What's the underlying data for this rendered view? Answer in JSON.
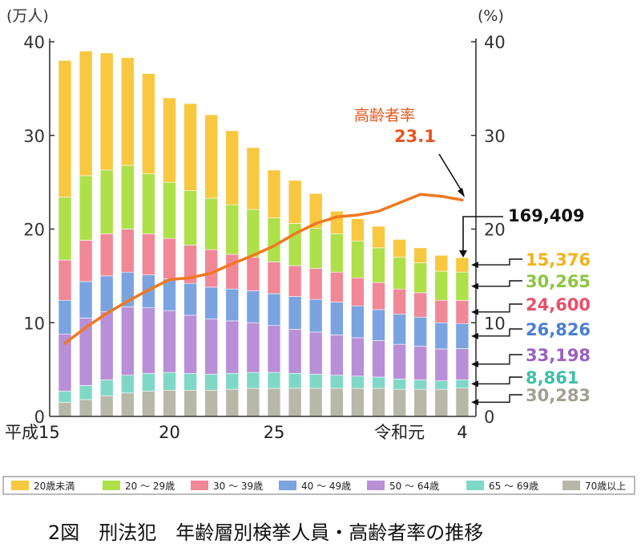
{
  "chart_data": {
    "type": "bar",
    "stacked": true,
    "title": "2図　刑法犯　年齢層別検挙人員・高齢者率の推移",
    "y_left_unit": "(万人)",
    "y_right_unit": "(%)",
    "ylim_left": [
      0,
      40
    ],
    "ylim_right": [
      0,
      40
    ],
    "y_ticks": [
      "0",
      "10",
      "20",
      "30",
      "40"
    ],
    "x_tick_labels": [
      {
        "index": 0,
        "label": "平成15"
      },
      {
        "index": 5,
        "label": "20"
      },
      {
        "index": 10,
        "label": "25"
      },
      {
        "index": 16,
        "label": "令和元"
      },
      {
        "index": 19,
        "label": "4"
      }
    ],
    "categories": [
      "H15",
      "H16",
      "H17",
      "H18",
      "H19",
      "H20",
      "H21",
      "H22",
      "H23",
      "H24",
      "H25",
      "H26",
      "H27",
      "H28",
      "H29",
      "H30",
      "R1",
      "R2",
      "R3",
      "R4"
    ],
    "series": [
      {
        "name": "70歳以上",
        "color": "#b8b8a8",
        "values": [
          1.5,
          1.8,
          2.2,
          2.5,
          2.7,
          2.8,
          2.8,
          2.8,
          2.9,
          3.0,
          3.0,
          3.0,
          3.0,
          3.0,
          3.0,
          3.0,
          2.9,
          2.9,
          2.9,
          3.03
        ]
      },
      {
        "name": "65～69歳",
        "color": "#7fd8c6",
        "values": [
          1.2,
          1.5,
          1.7,
          1.9,
          1.9,
          1.9,
          1.8,
          1.7,
          1.7,
          1.7,
          1.7,
          1.6,
          1.5,
          1.4,
          1.3,
          1.2,
          1.1,
          1.0,
          0.9,
          0.89
        ]
      },
      {
        "name": "50～64歳",
        "color": "#b98fd8",
        "values": [
          6.1,
          7.2,
          7.3,
          7.3,
          7.0,
          6.6,
          6.2,
          5.9,
          5.6,
          5.3,
          5.0,
          4.7,
          4.5,
          4.3,
          4.1,
          3.9,
          3.7,
          3.6,
          3.4,
          3.32
        ]
      },
      {
        "name": "40～49歳",
        "color": "#7ba3e0",
        "values": [
          3.6,
          3.9,
          3.8,
          3.7,
          3.5,
          3.4,
          3.4,
          3.4,
          3.4,
          3.4,
          3.4,
          3.5,
          3.5,
          3.5,
          3.4,
          3.3,
          3.2,
          3.1,
          2.8,
          2.68
        ]
      },
      {
        "name": "30～39歳",
        "color": "#f08898",
        "values": [
          4.3,
          4.4,
          4.5,
          4.6,
          4.4,
          4.3,
          4.1,
          4.0,
          3.7,
          3.6,
          3.4,
          3.3,
          3.3,
          3.2,
          3.0,
          2.9,
          2.7,
          2.6,
          2.4,
          2.46
        ]
      },
      {
        "name": "20～29歳",
        "color": "#aee04a",
        "values": [
          6.7,
          6.9,
          6.8,
          6.8,
          6.4,
          6.0,
          5.8,
          5.5,
          5.3,
          5.1,
          4.7,
          4.5,
          4.3,
          4.1,
          3.9,
          3.7,
          3.4,
          3.2,
          3.1,
          3.03
        ]
      },
      {
        "name": "20歳未満",
        "color": "#f8c840",
        "values": [
          14.6,
          13.3,
          12.5,
          11.5,
          10.7,
          9.0,
          9.3,
          8.9,
          7.9,
          6.6,
          5.1,
          4.6,
          3.7,
          2.4,
          2.4,
          2.3,
          1.9,
          1.6,
          1.7,
          1.54
        ]
      }
    ],
    "line": {
      "name": "高齢者率",
      "color": "#f07820",
      "values": [
        7.8,
        9.5,
        11.0,
        12.3,
        13.5,
        14.6,
        14.8,
        15.3,
        16.3,
        17.2,
        18.2,
        19.5,
        20.6,
        21.3,
        21.5,
        21.9,
        22.8,
        23.7,
        23.5,
        23.1
      ]
    },
    "annotations": {
      "rate_label": "高齢者率",
      "rate_value": "23.1",
      "total_value": "169,409",
      "segment_values": [
        {
          "series": "20歳未満",
          "text": "15,376",
          "color": "#f2b31a"
        },
        {
          "series": "20～29歳",
          "text": "30,265",
          "color": "#8cc63f"
        },
        {
          "series": "30～39歳",
          "text": "24,600",
          "color": "#e9506a"
        },
        {
          "series": "40～49歳",
          "text": "26,826",
          "color": "#4a7fd1"
        },
        {
          "series": "50～64歳",
          "text": "33,198",
          "color": "#9b5fc0"
        },
        {
          "series": "65～69歳",
          "text": "8,861",
          "color": "#3fbfa6"
        },
        {
          "series": "70歳以上",
          "text": "30,283",
          "color": "#a0a090"
        }
      ]
    },
    "legend_position": "bottom",
    "legend": [
      "20歳未満",
      "20 ～ 29歳",
      "30 ～ 39歳",
      "40 ～ 49歳",
      "50 ～ 64歳",
      "65 ～ 69歳",
      "70歳以上"
    ]
  }
}
